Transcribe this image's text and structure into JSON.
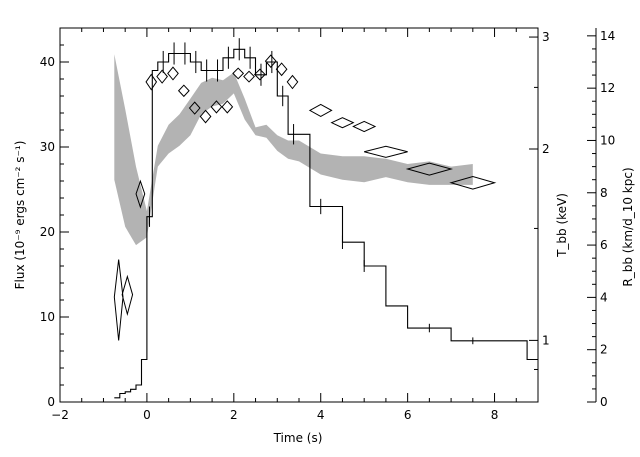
{
  "chart_data": {
    "type": "line",
    "xlabel": "Time (s)",
    "ylabel": "Flux (10⁻⁹ ergs cm⁻² s⁻¹)",
    "right_axis_1_label": "T_bb (keV)",
    "right_axis_2_label": "R_bb (km/d_10 kpc)",
    "xlim": [
      -2,
      9
    ],
    "ylim": [
      0,
      44
    ],
    "xticks": [
      -2,
      0,
      2,
      4,
      6,
      8
    ],
    "yticks": [
      0,
      10,
      20,
      30,
      40
    ],
    "right_axis_1": {
      "scale": "log",
      "lim": [
        0.8,
        3.1
      ],
      "ticks": [
        1,
        2,
        3
      ],
      "tick_labels": [
        "1",
        "2",
        "3"
      ]
    },
    "right_axis_2": {
      "scale": "linear",
      "lim": [
        0,
        14.3
      ],
      "ticks": [
        0,
        2,
        4,
        6,
        8,
        10,
        12,
        14
      ]
    },
    "series": [
      {
        "kind": "flux_histogram",
        "bins": [
          {
            "x0": -0.75,
            "x1": -0.625,
            "y": 0.5
          },
          {
            "x0": -0.625,
            "x1": -0.5,
            "y": 1.0
          },
          {
            "x0": -0.5,
            "x1": -0.375,
            "y": 1.2
          },
          {
            "x0": -0.375,
            "x1": -0.25,
            "y": 1.5
          },
          {
            "x0": -0.25,
            "x1": -0.125,
            "y": 2.0
          },
          {
            "x0": -0.125,
            "x1": 0.0,
            "y": 5.0
          },
          {
            "x0": 0.0,
            "x1": 0.125,
            "y": 21.8
          },
          {
            "x0": 0.125,
            "x1": 0.25,
            "y": 39.0
          },
          {
            "x0": 0.25,
            "x1": 0.5,
            "y": 40.0
          },
          {
            "x0": 0.5,
            "x1": 0.75,
            "y": 41.0
          },
          {
            "x0": 0.75,
            "x1": 1.0,
            "y": 41.0
          },
          {
            "x0": 1.0,
            "x1": 1.25,
            "y": 40.0
          },
          {
            "x0": 1.25,
            "x1": 1.5,
            "y": 39.0
          },
          {
            "x0": 1.5,
            "x1": 1.75,
            "y": 39.0
          },
          {
            "x0": 1.75,
            "x1": 2.0,
            "y": 40.5
          },
          {
            "x0": 2.0,
            "x1": 2.25,
            "y": 41.5
          },
          {
            "x0": 2.25,
            "x1": 2.5,
            "y": 40.5
          },
          {
            "x0": 2.5,
            "x1": 2.75,
            "y": 38.5
          },
          {
            "x0": 2.75,
            "x1": 3.0,
            "y": 40.0
          },
          {
            "x0": 3.0,
            "x1": 3.25,
            "y": 36.0
          },
          {
            "x0": 3.25,
            "x1": 3.5,
            "y": 31.5
          },
          {
            "x0": 3.5,
            "x1": 3.75,
            "y": 31.5
          },
          {
            "x0": 3.75,
            "x1": 4.0,
            "y": 23.0
          },
          {
            "x0": 4.0,
            "x1": 4.5,
            "y": 23.0
          },
          {
            "x0": 4.5,
            "x1": 5.0,
            "y": 18.8
          },
          {
            "x0": 5.0,
            "x1": 5.5,
            "y": 16.0
          },
          {
            "x0": 5.5,
            "x1": 6.0,
            "y": 11.3
          },
          {
            "x0": 6.0,
            "x1": 7.0,
            "y": 8.7
          },
          {
            "x0": 7.0,
            "x1": 8.75,
            "y": 7.2
          },
          {
            "x0": 8.75,
            "x1": 9.0,
            "y": 5.0
          }
        ],
        "errors": [
          {
            "x": 0.06,
            "y": 21.8,
            "e": 1.2
          },
          {
            "x": 0.375,
            "y": 40.0,
            "e": 1.3
          },
          {
            "x": 0.625,
            "y": 41.0,
            "e": 1.3
          },
          {
            "x": 0.875,
            "y": 41.0,
            "e": 1.3
          },
          {
            "x": 1.125,
            "y": 40.0,
            "e": 1.3
          },
          {
            "x": 1.375,
            "y": 39.0,
            "e": 1.3
          },
          {
            "x": 1.625,
            "y": 39.0,
            "e": 1.3
          },
          {
            "x": 1.875,
            "y": 40.5,
            "e": 1.3
          },
          {
            "x": 2.125,
            "y": 41.5,
            "e": 1.3
          },
          {
            "x": 2.375,
            "y": 40.5,
            "e": 1.3
          },
          {
            "x": 2.625,
            "y": 38.5,
            "e": 1.3
          },
          {
            "x": 2.875,
            "y": 40.0,
            "e": 1.3
          },
          {
            "x": 3.125,
            "y": 36.0,
            "e": 1.2
          },
          {
            "x": 3.375,
            "y": 31.5,
            "e": 1.2
          },
          {
            "x": 4.0,
            "y": 23.0,
            "e": 0.9
          },
          {
            "x": 4.5,
            "y": 18.8,
            "e": 0.8
          },
          {
            "x": 5.0,
            "y": 16.0,
            "e": 0.7
          },
          {
            "x": 6.5,
            "y": 8.7,
            "e": 0.5
          },
          {
            "x": 7.5,
            "y": 7.2,
            "e": 0.4
          }
        ]
      },
      {
        "kind": "temperature_diamonds",
        "axis": "right_axis_1",
        "points": [
          {
            "x": -0.65,
            "dx": 0.1,
            "y": 1.17,
            "dy_up": 0.17,
            "dy_dn": 0.17
          },
          {
            "x": -0.45,
            "dx": 0.12,
            "y": 1.18,
            "dy_up": 0.08,
            "dy_dn": 0.08
          },
          {
            "x": -0.15,
            "dx": 0.1,
            "y": 1.7,
            "dy_up": 0.08,
            "dy_dn": 0.08
          },
          {
            "x": 0.1,
            "dx": 0.12,
            "y": 2.55,
            "dy_up": 0.07,
            "dy_dn": 0.07
          },
          {
            "x": 0.35,
            "dx": 0.12,
            "y": 2.6,
            "dy_up": 0.06,
            "dy_dn": 0.06
          },
          {
            "x": 0.6,
            "dx": 0.12,
            "y": 2.63,
            "dy_up": 0.06,
            "dy_dn": 0.06
          },
          {
            "x": 0.85,
            "dx": 0.12,
            "y": 2.47,
            "dy_up": 0.05,
            "dy_dn": 0.05
          },
          {
            "x": 1.1,
            "dx": 0.12,
            "y": 2.32,
            "dy_up": 0.05,
            "dy_dn": 0.05
          },
          {
            "x": 1.35,
            "dx": 0.12,
            "y": 2.25,
            "dy_up": 0.05,
            "dy_dn": 0.05
          },
          {
            "x": 1.6,
            "dx": 0.12,
            "y": 2.33,
            "dy_up": 0.05,
            "dy_dn": 0.05
          },
          {
            "x": 1.85,
            "dx": 0.12,
            "y": 2.33,
            "dy_up": 0.05,
            "dy_dn": 0.05
          },
          {
            "x": 2.1,
            "dx": 0.12,
            "y": 2.63,
            "dy_up": 0.05,
            "dy_dn": 0.05
          },
          {
            "x": 2.35,
            "dx": 0.12,
            "y": 2.6,
            "dy_up": 0.05,
            "dy_dn": 0.05
          },
          {
            "x": 2.6,
            "dx": 0.12,
            "y": 2.62,
            "dy_up": 0.05,
            "dy_dn": 0.05
          },
          {
            "x": 2.85,
            "dx": 0.12,
            "y": 2.75,
            "dy_up": 0.06,
            "dy_dn": 0.06
          },
          {
            "x": 3.1,
            "dx": 0.12,
            "y": 2.67,
            "dy_up": 0.06,
            "dy_dn": 0.06
          },
          {
            "x": 3.35,
            "dx": 0.12,
            "y": 2.55,
            "dy_up": 0.06,
            "dy_dn": 0.06
          },
          {
            "x": 4.0,
            "dx": 0.25,
            "y": 2.3,
            "dy_up": 0.05,
            "dy_dn": 0.05
          },
          {
            "x": 4.5,
            "dx": 0.25,
            "y": 2.2,
            "dy_up": 0.04,
            "dy_dn": 0.04
          },
          {
            "x": 5.0,
            "dx": 0.25,
            "y": 2.17,
            "dy_up": 0.04,
            "dy_dn": 0.04
          },
          {
            "x": 5.5,
            "dx": 0.5,
            "y": 1.98,
            "dy_up": 0.04,
            "dy_dn": 0.04
          },
          {
            "x": 6.5,
            "dx": 0.5,
            "y": 1.86,
            "dy_up": 0.04,
            "dy_dn": 0.04
          },
          {
            "x": 7.5,
            "dx": 0.5,
            "y": 1.77,
            "dy_up": 0.04,
            "dy_dn": 0.04
          }
        ]
      },
      {
        "kind": "radius_band",
        "axis": "right_axis_2",
        "x": [
          -0.75,
          -0.5,
          -0.25,
          0.0,
          0.25,
          0.5,
          0.75,
          1.0,
          1.25,
          1.5,
          1.75,
          2.0,
          2.25,
          2.5,
          2.75,
          3.0,
          3.25,
          3.5,
          4.0,
          4.5,
          5.0,
          5.5,
          6.0,
          6.5,
          7.0,
          7.5
        ],
        "upper": [
          13.3,
          11.2,
          9.0,
          7.3,
          9.8,
          10.6,
          11.0,
          11.6,
          12.2,
          12.4,
          12.3,
          12.6,
          11.6,
          10.5,
          10.6,
          10.2,
          10.0,
          10.0,
          9.5,
          9.4,
          9.4,
          9.3,
          9.1,
          9.2,
          9.0,
          9.1
        ],
        "lower": [
          8.5,
          6.7,
          6.0,
          6.3,
          9.0,
          9.5,
          9.8,
          10.2,
          11.0,
          11.3,
          11.4,
          11.8,
          10.8,
          10.2,
          10.1,
          9.6,
          9.3,
          9.2,
          8.7,
          8.5,
          8.4,
          8.6,
          8.4,
          8.3,
          8.3,
          8.3
        ]
      }
    ],
    "grid": false,
    "legend": "none"
  }
}
